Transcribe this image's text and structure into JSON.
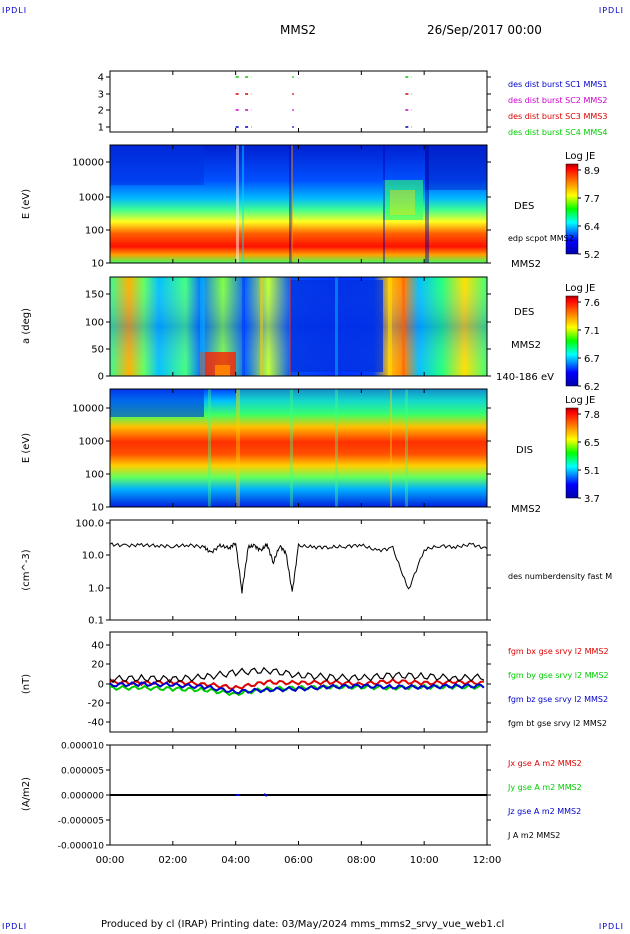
{
  "header": {
    "corner_label": "IPDLI",
    "spacecraft": "MMS2",
    "datetime": "26/Sep/2017 00:00"
  },
  "footer": {
    "text": "Produced by cl (IRAP)   Printing date: 03/May/2024   mms_mms2_srvy_vue_web1.cl"
  },
  "time_axis": {
    "ticks": [
      "00:00",
      "02:00",
      "04:00",
      "06:00",
      "08:00",
      "10:00",
      "12:00"
    ],
    "range_hours": [
      0,
      12
    ]
  },
  "colors": {
    "mms1": "#0000cc",
    "mms2": "#cc00cc",
    "mms3": "#dd0000",
    "mms4": "#00cc00",
    "bx": "#dd0000",
    "by": "#00cc00",
    "bz": "#0000cc",
    "bt": "#000000"
  },
  "chart_data": [
    {
      "type": "scatter",
      "panel": "burst-flags",
      "y_ticks": [
        "4",
        "3",
        "2",
        "1"
      ],
      "legend": [
        {
          "label": "des dist burst SC1 MMS1",
          "color": "#0000cc"
        },
        {
          "label": "des dist burst SC2 MMS2",
          "color": "#cc00cc"
        },
        {
          "label": "des dist burst SC3 MMS3",
          "color": "#dd0000"
        },
        {
          "label": "des dist burst SC4 MMS4",
          "color": "#00cc00"
        }
      ],
      "intervals_hours": [
        [
          4.0,
          4.1
        ],
        [
          4.3,
          4.5
        ],
        [
          5.8,
          5.85
        ],
        [
          9.4,
          9.6
        ]
      ]
    },
    {
      "type": "heatmap",
      "panel": "des-energy",
      "ylabel": "E (eV)",
      "y_ticks": [
        "10000",
        "1000",
        "100",
        "10"
      ],
      "side_labels": [
        "DES",
        "edp scpot MMS2",
        "MMS2"
      ],
      "colorbar": {
        "title": "Log JE",
        "ticks": [
          "8.9",
          "7.7",
          "6.4",
          "5.2"
        ]
      }
    },
    {
      "type": "heatmap",
      "panel": "des-pitch",
      "ylabel": "a (deg)",
      "y_ticks": [
        "150",
        "100",
        "50",
        "0"
      ],
      "side_labels": [
        "DES",
        "MMS2",
        "140-186 eV"
      ],
      "colorbar": {
        "title": "Log JE",
        "ticks": [
          "7.6",
          "7.1",
          "6.7",
          "6.2"
        ]
      }
    },
    {
      "type": "heatmap",
      "panel": "dis-energy",
      "ylabel": "E (eV)",
      "y_ticks": [
        "10000",
        "1000",
        "100",
        "10"
      ],
      "side_labels": [
        "DIS",
        "MMS2"
      ],
      "colorbar": {
        "title": "Log JE",
        "ticks": [
          "7.8",
          "6.5",
          "5.1",
          "3.7"
        ]
      }
    },
    {
      "type": "line",
      "panel": "density",
      "ylabel": "(cm^-3)",
      "y_ticks": [
        "100.0",
        "10.0",
        "1.0",
        "0.1"
      ],
      "log_range": [
        0.1,
        100
      ],
      "legend": [
        {
          "label": "des numberdensity fast M",
          "color": "#000000"
        }
      ],
      "x_hours": [
        0.0,
        0.5,
        1.0,
        1.5,
        2.0,
        2.5,
        3.0,
        3.2,
        3.5,
        3.8,
        4.0,
        4.2,
        4.4,
        4.6,
        4.8,
        5.0,
        5.2,
        5.4,
        5.6,
        5.8,
        6.0,
        6.5,
        7.0,
        7.5,
        8.0,
        8.5,
        9.0,
        9.5,
        10.0,
        10.5,
        11.0,
        11.5,
        12.0
      ],
      "values": [
        22,
        20,
        21,
        20,
        19,
        21,
        18,
        12,
        20,
        17,
        25,
        0.75,
        18,
        20,
        14,
        22,
        6,
        20,
        12,
        0.72,
        20,
        18,
        18,
        19,
        21,
        14,
        17,
        0.85,
        15,
        20,
        18,
        22,
        16
      ]
    },
    {
      "type": "line",
      "panel": "magnetic-field",
      "ylabel": "(nT)",
      "y_ticks": [
        "40",
        "20",
        "0",
        "-20",
        "-40"
      ],
      "ylim": [
        -50,
        50
      ],
      "legend": [
        {
          "label": "fgm bx gse srvy l2 MMS2",
          "color": "#dd0000"
        },
        {
          "label": "fgm by gse srvy l2 MMS2",
          "color": "#00cc00"
        },
        {
          "label": "fgm bz gse srvy l2 MMS2",
          "color": "#0000cc"
        },
        {
          "label": "fgm bt gse srvy l2 MMS2",
          "color": "#000000"
        }
      ],
      "x_hours": [
        0,
        1,
        2,
        3,
        4,
        5,
        6,
        7,
        8,
        9,
        10,
        11,
        12
      ],
      "series": [
        {
          "name": "fgm bx gse srvy l2 MMS2",
          "values": [
            2,
            1,
            2,
            0,
            -4,
            2,
            1,
            2,
            0,
            3,
            1,
            2,
            1
          ]
        },
        {
          "name": "fgm by gse srvy l2 MMS2",
          "values": [
            -4,
            -4,
            -5,
            -6,
            -10,
            -5,
            -4,
            -3,
            -3,
            -4,
            -3,
            -3,
            -3
          ]
        },
        {
          "name": "fgm bz gse srvy l2 MMS2",
          "values": [
            -1,
            0,
            -1,
            -3,
            -8,
            -6,
            -5,
            -3,
            -2,
            -3,
            -3,
            -2,
            -2
          ]
        },
        {
          "name": "fgm bt gse srvy l2 MMS2",
          "values": [
            5,
            6,
            5,
            7,
            12,
            14,
            9,
            7,
            6,
            9,
            8,
            6,
            7
          ]
        }
      ]
    },
    {
      "type": "line",
      "panel": "current-density",
      "ylabel": "(A/m2)",
      "y_ticks": [
        "0.000010",
        "0.000005",
        "0.000000",
        "-0.000005",
        "-0.000010"
      ],
      "ylim": [
        -1e-05,
        1e-05
      ],
      "legend": [
        {
          "label": "Jx gse A m2 MMS2",
          "color": "#dd0000"
        },
        {
          "label": "Jy gse A m2 MMS2",
          "color": "#00cc00"
        },
        {
          "label": "Jz gse A m2 MMS2",
          "color": "#0000cc"
        },
        {
          "label": "J A m2 MMS2",
          "color": "#000000"
        }
      ],
      "x_hours": [
        0,
        12
      ],
      "values": [
        0,
        0
      ]
    }
  ]
}
